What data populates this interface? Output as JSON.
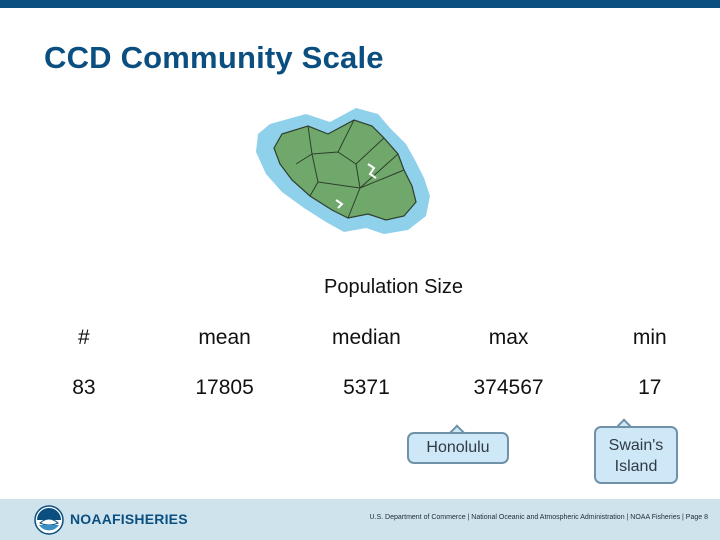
{
  "title": "CCD Community Scale",
  "population_header": "Population Size",
  "table": {
    "headers": [
      "#",
      "mean",
      "median",
      "max",
      "min"
    ],
    "values": [
      "83",
      "17805",
      "5371",
      "374567",
      "17"
    ]
  },
  "callouts": {
    "max_label": "Honolulu",
    "min_label_line1": "Swain's",
    "min_label_line2": "Island"
  },
  "footer": {
    "brand_noaa": "NOAA",
    "brand_fisheries": "FISHERIES",
    "text": "U.S. Department of Commerce | National Oceanic and Atmospheric Administration | NOAA Fisheries | Page 8"
  },
  "colors": {
    "accent": "#0b4f80",
    "land": "#6fa86a",
    "water": "#8fd0ea",
    "callout_fill": "#cfe8f7",
    "footer_band": "#cfe3ed"
  },
  "icons": {
    "logo": "noaa-logo-icon",
    "map": "oahu-map"
  }
}
